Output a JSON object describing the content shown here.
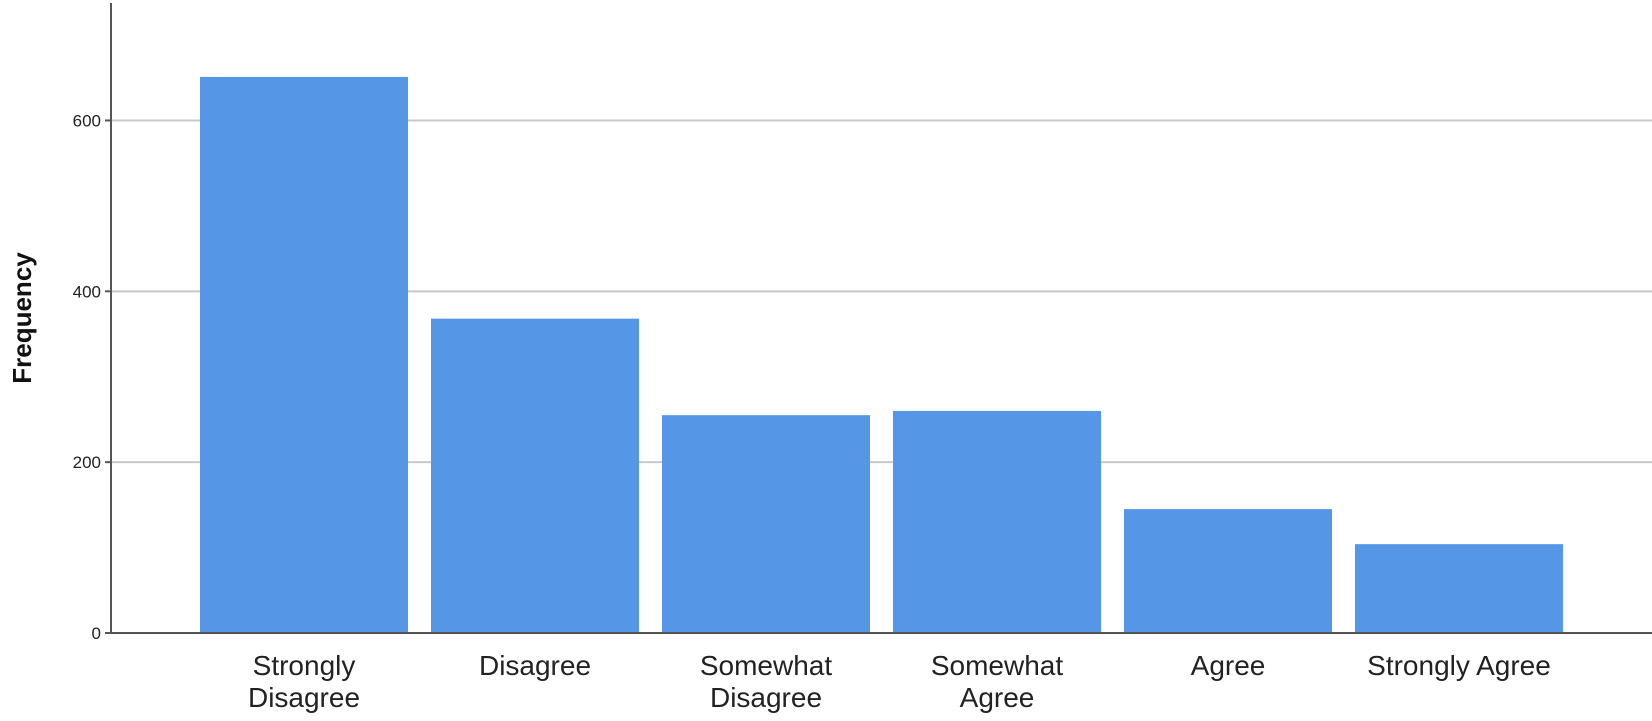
{
  "chart_data": {
    "type": "bar",
    "title": "",
    "xlabel": "",
    "ylabel": "Frequency",
    "categories": [
      [
        "Strongly",
        "Disagree"
      ],
      [
        "Disagree"
      ],
      [
        "Somewhat",
        "Disagree"
      ],
      [
        "Somewhat",
        "Agree"
      ],
      [
        "Agree"
      ],
      [
        "Strongly Agree"
      ]
    ],
    "values": [
      651,
      368,
      255,
      260,
      145,
      104
    ],
    "ylim": [
      0,
      720
    ],
    "yticks": [
      0,
      200,
      400,
      600
    ],
    "grid": true,
    "legend": "none",
    "colors": {
      "bar": "#5596e6"
    }
  }
}
